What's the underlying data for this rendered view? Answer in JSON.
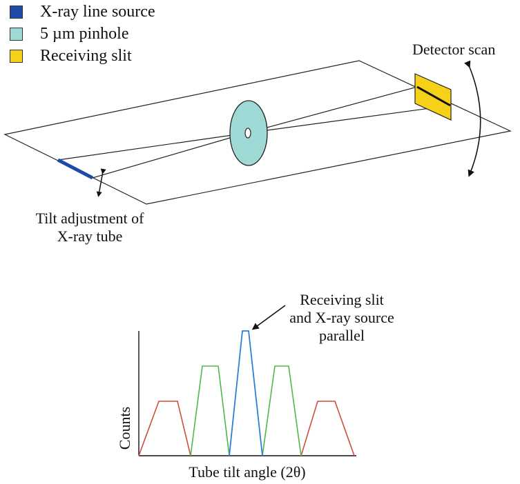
{
  "legend": {
    "items": [
      {
        "label": "X-ray line source",
        "color": "#1f4aa8"
      },
      {
        "label": "5 µm pinhole",
        "color": "#9fd9d6"
      },
      {
        "label": "Receiving slit",
        "color": "#f5d11a"
      }
    ]
  },
  "diagram": {
    "detector_label": "Detector scan",
    "tilt_label_line1": "Tilt adjustment of",
    "tilt_label_line2": "X-ray tube"
  },
  "plot": {
    "annotation_line1": "Receiving slit",
    "annotation_line2": "and X-ray source",
    "annotation_line3": "parallel",
    "xlabel": "Tube tilt angle (2θ)",
    "ylabel": "Counts",
    "colors": {
      "outer": "#d24a3a",
      "middle": "#4cb84c",
      "center": "#2b7fd6"
    }
  }
}
